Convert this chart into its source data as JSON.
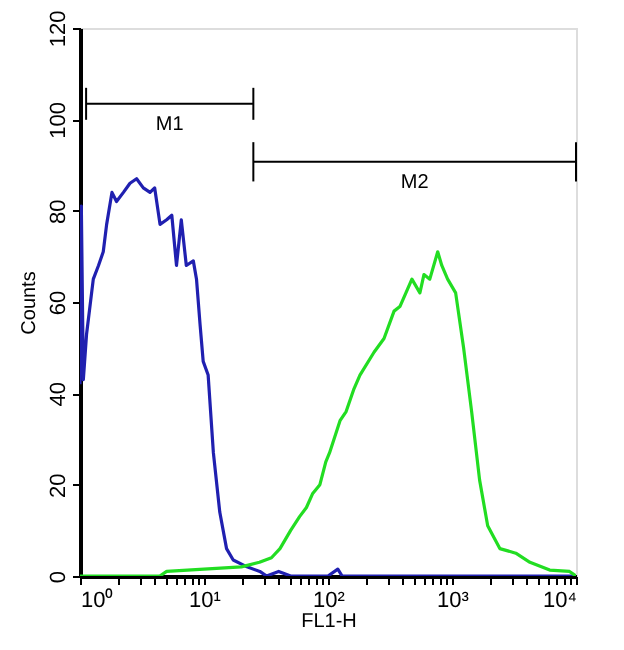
{
  "chart_data": {
    "type": "line",
    "xlabel": "FL1-H",
    "ylabel": "Counts",
    "xlim": [
      1,
      10000
    ],
    "ylim": [
      0,
      120
    ],
    "xticks": [
      {
        "value": 1,
        "label": "10⁰"
      },
      {
        "value": 2,
        "label": null
      },
      {
        "value": 3,
        "label": null
      },
      {
        "value": 4,
        "label": null
      },
      {
        "value": 5,
        "label": null
      },
      {
        "value": 6,
        "label": null
      },
      {
        "value": 7,
        "label": null
      },
      {
        "value": 8,
        "label": null
      },
      {
        "value": 9,
        "label": null
      },
      {
        "value": 10,
        "label": "10¹"
      },
      {
        "value": 20,
        "label": null
      },
      {
        "value": 30,
        "label": null
      },
      {
        "value": 40,
        "label": null
      },
      {
        "value": 50,
        "label": null
      },
      {
        "value": 60,
        "label": null
      },
      {
        "value": 70,
        "label": null
      },
      {
        "value": 80,
        "label": null
      },
      {
        "value": 90,
        "label": null
      },
      {
        "value": 100,
        "label": "10²"
      },
      {
        "value": 200,
        "label": null
      },
      {
        "value": 300,
        "label": null
      },
      {
        "value": 400,
        "label": null
      },
      {
        "value": 500,
        "label": null
      },
      {
        "value": 600,
        "label": null
      },
      {
        "value": 700,
        "label": null
      },
      {
        "value": 800,
        "label": null
      },
      {
        "value": 900,
        "label": null
      },
      {
        "value": 1000,
        "label": "10³"
      },
      {
        "value": 2000,
        "label": null
      },
      {
        "value": 3000,
        "label": null
      },
      {
        "value": 4000,
        "label": null
      },
      {
        "value": 5000,
        "label": null
      },
      {
        "value": 6000,
        "label": null
      },
      {
        "value": 7000,
        "label": null
      },
      {
        "value": 8000,
        "label": null
      },
      {
        "value": 9000,
        "label": null
      },
      {
        "value": 10000,
        "label": "10⁴"
      }
    ],
    "yticks": [
      0,
      20,
      40,
      60,
      80,
      100,
      120
    ],
    "log": "x",
    "grid": false,
    "marker": "none",
    "line_style": "solid",
    "series": [
      {
        "color": "#2020b0",
        "x": [
          1,
          1.025,
          1.064,
          1.13,
          1.28,
          1.41,
          1.54,
          1.64,
          1.81,
          1.97,
          2.24,
          2.53,
          2.86,
          3.24,
          3.67,
          4.0,
          4.42,
          5.0,
          5.5,
          6.0,
          6.56,
          7.2,
          8.2,
          8.7,
          9.3,
          9.85,
          10.8,
          11.9,
          13.4,
          15.2,
          17.2,
          22.2,
          28.2,
          32,
          40,
          50,
          100,
          120,
          130,
          10000
        ],
        "values": [
          42,
          81,
          43,
          53,
          65,
          68,
          71,
          77,
          84,
          82,
          84,
          86,
          87,
          85,
          84,
          85,
          77,
          78,
          79,
          68,
          78,
          68,
          69,
          65,
          55,
          47,
          44,
          27,
          14,
          6,
          3.5,
          2,
          1,
          0,
          1,
          0,
          0,
          1.5,
          0,
          0
        ]
      },
      {
        "name": "M1",
        "type": "line",
        "color": "#000000",
        "x": [
          1.12,
          25
        ],
        "values": [
          103.4,
          103.4
        ],
        "errors": [
          3.5,
          3.5
        ]
      },
      {
        "name": "M2",
        "type": "line",
        "color": "#000000",
        "x": [
          25,
          10000
        ],
        "values": [
          90.7,
          90.7
        ],
        "errors": [
          4.3,
          4.3
        ]
      },
      {
        "color": "#22dd22",
        "x": [
          1,
          4.4,
          5,
          10,
          20,
          28,
          35,
          41,
          50,
          59,
          67,
          75,
          86,
          96,
          103,
          125,
          140,
          162,
          181,
          235,
          283,
          341,
          380,
          425,
          475,
          551,
          594,
          662,
          767,
          827,
          922,
          1070,
          1240,
          1440,
          1670,
          1940,
          2430,
          3270,
          4250,
          6140,
          8870,
          10000
        ],
        "values": [
          0,
          0,
          1,
          1.5,
          2,
          3,
          4,
          6,
          10,
          13,
          15,
          18,
          20,
          25,
          27,
          34,
          36,
          41,
          44,
          49,
          52,
          58,
          59,
          62,
          65,
          62,
          66,
          65,
          71,
          68,
          65,
          62,
          50,
          36,
          21,
          11,
          6,
          5,
          3,
          1.3,
          1,
          0
        ]
      }
    ]
  }
}
